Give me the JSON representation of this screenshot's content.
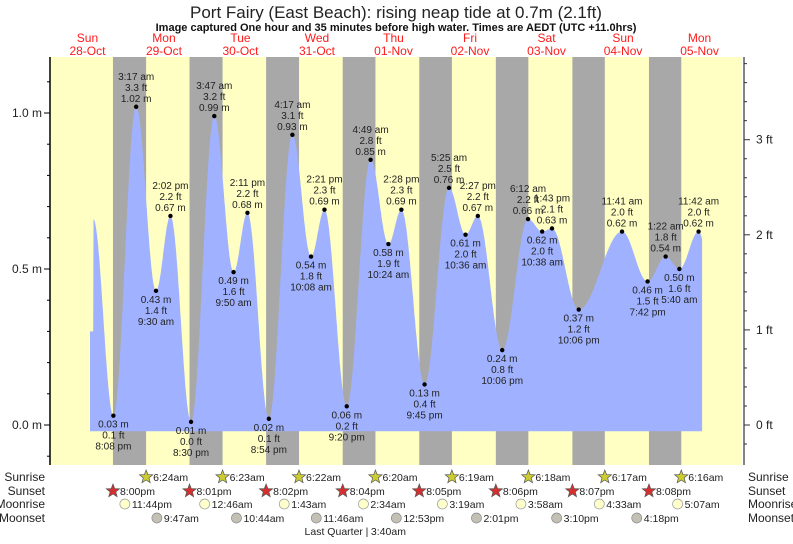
{
  "title": "Port Fairy (East Beach): rising  neap tide at 0.7m (2.1ft)",
  "subtitle": "Image captured One hour and 35 minutes before high water. Times are AEDT (UTC +11.0hrs)",
  "colors": {
    "day": "#ffffc4",
    "night": "#a8a8a8",
    "water": "#a0b2ff",
    "day_header": "#ff1a1a",
    "sunrise_star": "#cccc33",
    "sunset_star": "#d43030",
    "moonrise": "#ffffcc",
    "moonset": "#c4c0b4"
  },
  "chart_data": {
    "type": "area",
    "title": "Port Fairy (East Beach): rising  neap tide at 0.7m (2.1ft)",
    "y_left": {
      "unit": "m",
      "ticks": [
        "0.0 m",
        "0.5 m",
        "1.0 m"
      ],
      "range": [
        -0.12,
        1.18
      ]
    },
    "y_right": {
      "unit": "ft",
      "ticks": [
        "0 ft",
        "1 ft",
        "2 ft",
        "3 ft"
      ]
    },
    "days": [
      {
        "dow": "Sun",
        "date": "28-Oct"
      },
      {
        "dow": "Mon",
        "date": "29-Oct"
      },
      {
        "dow": "Tue",
        "date": "30-Oct"
      },
      {
        "dow": "Wed",
        "date": "31-Oct"
      },
      {
        "dow": "Thu",
        "date": "01-Nov"
      },
      {
        "dow": "Fri",
        "date": "02-Nov"
      },
      {
        "dow": "Sat",
        "date": "03-Nov"
      },
      {
        "dow": "Sun",
        "date": "04-Nov"
      },
      {
        "dow": "Mon",
        "date": "05-Nov"
      }
    ],
    "tides": [
      {
        "date": "28-Oct",
        "time": "8:08 pm",
        "m": "0.03 m",
        "ft": "0.1 ft",
        "height": 0.03,
        "type": "low"
      },
      {
        "date": "29-Oct",
        "time": "3:17 am",
        "m": "1.02 m",
        "ft": "3.3 ft",
        "height": 1.02,
        "type": "high"
      },
      {
        "date": "29-Oct",
        "time": "9:30 am",
        "m": "0.43 m",
        "ft": "1.4 ft",
        "height": 0.43,
        "type": "low"
      },
      {
        "date": "29-Oct",
        "time": "2:02 pm",
        "m": "0.67 m",
        "ft": "2.2 ft",
        "height": 0.67,
        "type": "high"
      },
      {
        "date": "29-Oct",
        "time": "8:30 pm",
        "m": "0.01 m",
        "ft": "0.0 ft",
        "height": 0.01,
        "type": "low"
      },
      {
        "date": "30-Oct",
        "time": "3:47 am",
        "m": "0.99 m",
        "ft": "3.2 ft",
        "height": 0.99,
        "type": "high"
      },
      {
        "date": "30-Oct",
        "time": "9:50 am",
        "m": "0.49 m",
        "ft": "1.6 ft",
        "height": 0.49,
        "type": "low"
      },
      {
        "date": "30-Oct",
        "time": "2:11 pm",
        "m": "0.68 m",
        "ft": "2.2 ft",
        "height": 0.68,
        "type": "high"
      },
      {
        "date": "30-Oct",
        "time": "8:54 pm",
        "m": "0.02 m",
        "ft": "0.1 ft",
        "height": 0.02,
        "type": "low"
      },
      {
        "date": "31-Oct",
        "time": "4:17 am",
        "m": "0.93 m",
        "ft": "3.1 ft",
        "height": 0.93,
        "type": "high"
      },
      {
        "date": "31-Oct",
        "time": "10:08 am",
        "m": "0.54 m",
        "ft": "1.8 ft",
        "height": 0.54,
        "type": "low"
      },
      {
        "date": "31-Oct",
        "time": "2:21 pm",
        "m": "0.69 m",
        "ft": "2.3 ft",
        "height": 0.69,
        "type": "high"
      },
      {
        "date": "31-Oct",
        "time": "9:20 pm",
        "m": "0.06 m",
        "ft": "0.2 ft",
        "height": 0.06,
        "type": "low"
      },
      {
        "date": "01-Nov",
        "time": "4:49 am",
        "m": "0.85 m",
        "ft": "2.8 ft",
        "height": 0.85,
        "type": "high"
      },
      {
        "date": "01-Nov",
        "time": "10:24 am",
        "m": "0.58 m",
        "ft": "1.9 ft",
        "height": 0.58,
        "type": "low"
      },
      {
        "date": "01-Nov",
        "time": "2:28 pm",
        "m": "0.69 m",
        "ft": "2.3 ft",
        "height": 0.69,
        "type": "high"
      },
      {
        "date": "01-Nov",
        "time": "9:45 pm",
        "m": "0.13 m",
        "ft": "0.4 ft",
        "height": 0.13,
        "type": "low"
      },
      {
        "date": "02-Nov",
        "time": "5:25 am",
        "m": "0.76 m",
        "ft": "2.5 ft",
        "height": 0.76,
        "type": "high"
      },
      {
        "date": "02-Nov",
        "time": "10:36 am",
        "m": "0.61 m",
        "ft": "2.0 ft",
        "height": 0.61,
        "type": "low"
      },
      {
        "date": "02-Nov",
        "time": "2:27 pm",
        "m": "0.67 m",
        "ft": "2.2 ft",
        "height": 0.67,
        "type": "high"
      },
      {
        "date": "02-Nov",
        "time": "10:06 pm",
        "m": "0.24 m",
        "ft": "0.8 ft",
        "height": 0.24,
        "type": "low"
      },
      {
        "date": "03-Nov",
        "time": "6:12 am",
        "m": "0.66 m",
        "ft": "2.2 ft",
        "height": 0.66,
        "type": "high"
      },
      {
        "date": "03-Nov",
        "time": "10:38 am",
        "m": "0.62 m",
        "ft": "2.0 ft",
        "height": 0.62,
        "type": "low"
      },
      {
        "date": "03-Nov",
        "time": "1:43 pm",
        "m": "0.63 m",
        "ft": "2.1 ft",
        "height": 0.63,
        "type": "high"
      },
      {
        "date": "03-Nov",
        "time": "10:06 pm",
        "m": "0.37 m",
        "ft": "1.2 ft",
        "height": 0.37,
        "type": "low"
      },
      {
        "date": "04-Nov",
        "time": "11:41 am",
        "m": "0.62 m",
        "ft": "2.0 ft",
        "height": 0.62,
        "type": "high"
      },
      {
        "date": "04-Nov",
        "time": "7:42 pm",
        "m": "0.46 m",
        "ft": "1.5 ft",
        "height": 0.46,
        "type": "low"
      },
      {
        "date": "05-Nov",
        "time": "1:22 am",
        "m": "0.54 m",
        "ft": "1.8 ft",
        "height": 0.54,
        "type": "high"
      },
      {
        "date": "05-Nov",
        "time": "5:40 am",
        "m": "0.50 m",
        "ft": "1.6 ft",
        "height": 0.5,
        "type": "low"
      },
      {
        "date": "05-Nov",
        "time": "11:42 am",
        "m": "0.62 m",
        "ft": "2.0 ft",
        "height": 0.62,
        "type": "high"
      }
    ]
  },
  "events": {
    "row_labels": {
      "sunrise": "Sunrise",
      "sunset": "Sunset",
      "moonrise": "Moonrise",
      "moonset": "Moonset"
    },
    "sunrise": [
      {
        "date": "29-Oct",
        "time": "6:24am"
      },
      {
        "date": "30-Oct",
        "time": "6:23am"
      },
      {
        "date": "31-Oct",
        "time": "6:22am"
      },
      {
        "date": "01-Nov",
        "time": "6:20am"
      },
      {
        "date": "02-Nov",
        "time": "6:19am"
      },
      {
        "date": "03-Nov",
        "time": "6:18am"
      },
      {
        "date": "04-Nov",
        "time": "6:17am"
      },
      {
        "date": "05-Nov",
        "time": "6:16am"
      }
    ],
    "sunset": [
      {
        "date": "28-Oct",
        "time": "8:00pm"
      },
      {
        "date": "29-Oct",
        "time": "8:01pm"
      },
      {
        "date": "30-Oct",
        "time": "8:02pm"
      },
      {
        "date": "31-Oct",
        "time": "8:04pm"
      },
      {
        "date": "01-Nov",
        "time": "8:05pm"
      },
      {
        "date": "02-Nov",
        "time": "8:06pm"
      },
      {
        "date": "03-Nov",
        "time": "8:07pm"
      },
      {
        "date": "04-Nov",
        "time": "8:08pm"
      }
    ],
    "moonrise": [
      {
        "date": "28-Oct",
        "time": "11:44pm"
      },
      {
        "date": "30-Oct",
        "time": "12:46am"
      },
      {
        "date": "31-Oct",
        "time": "1:43am"
      },
      {
        "date": "01-Nov",
        "time": "2:34am"
      },
      {
        "date": "02-Nov",
        "time": "3:19am"
      },
      {
        "date": "03-Nov",
        "time": "3:58am"
      },
      {
        "date": "04-Nov",
        "time": "4:33am"
      },
      {
        "date": "05-Nov",
        "time": "5:07am"
      }
    ],
    "moonset": [
      {
        "date": "29-Oct",
        "time": "9:47am"
      },
      {
        "date": "30-Oct",
        "time": "10:44am"
      },
      {
        "date": "31-Oct",
        "time": "11:46am"
      },
      {
        "date": "01-Nov",
        "time": "12:53pm"
      },
      {
        "date": "02-Nov",
        "time": "2:01pm"
      },
      {
        "date": "03-Nov",
        "time": "3:10pm"
      },
      {
        "date": "04-Nov",
        "time": "4:18pm"
      }
    ],
    "moon_phase": {
      "date": "01-Nov",
      "name": "Last Quarter",
      "separator": "|",
      "time": "3:40am"
    }
  }
}
